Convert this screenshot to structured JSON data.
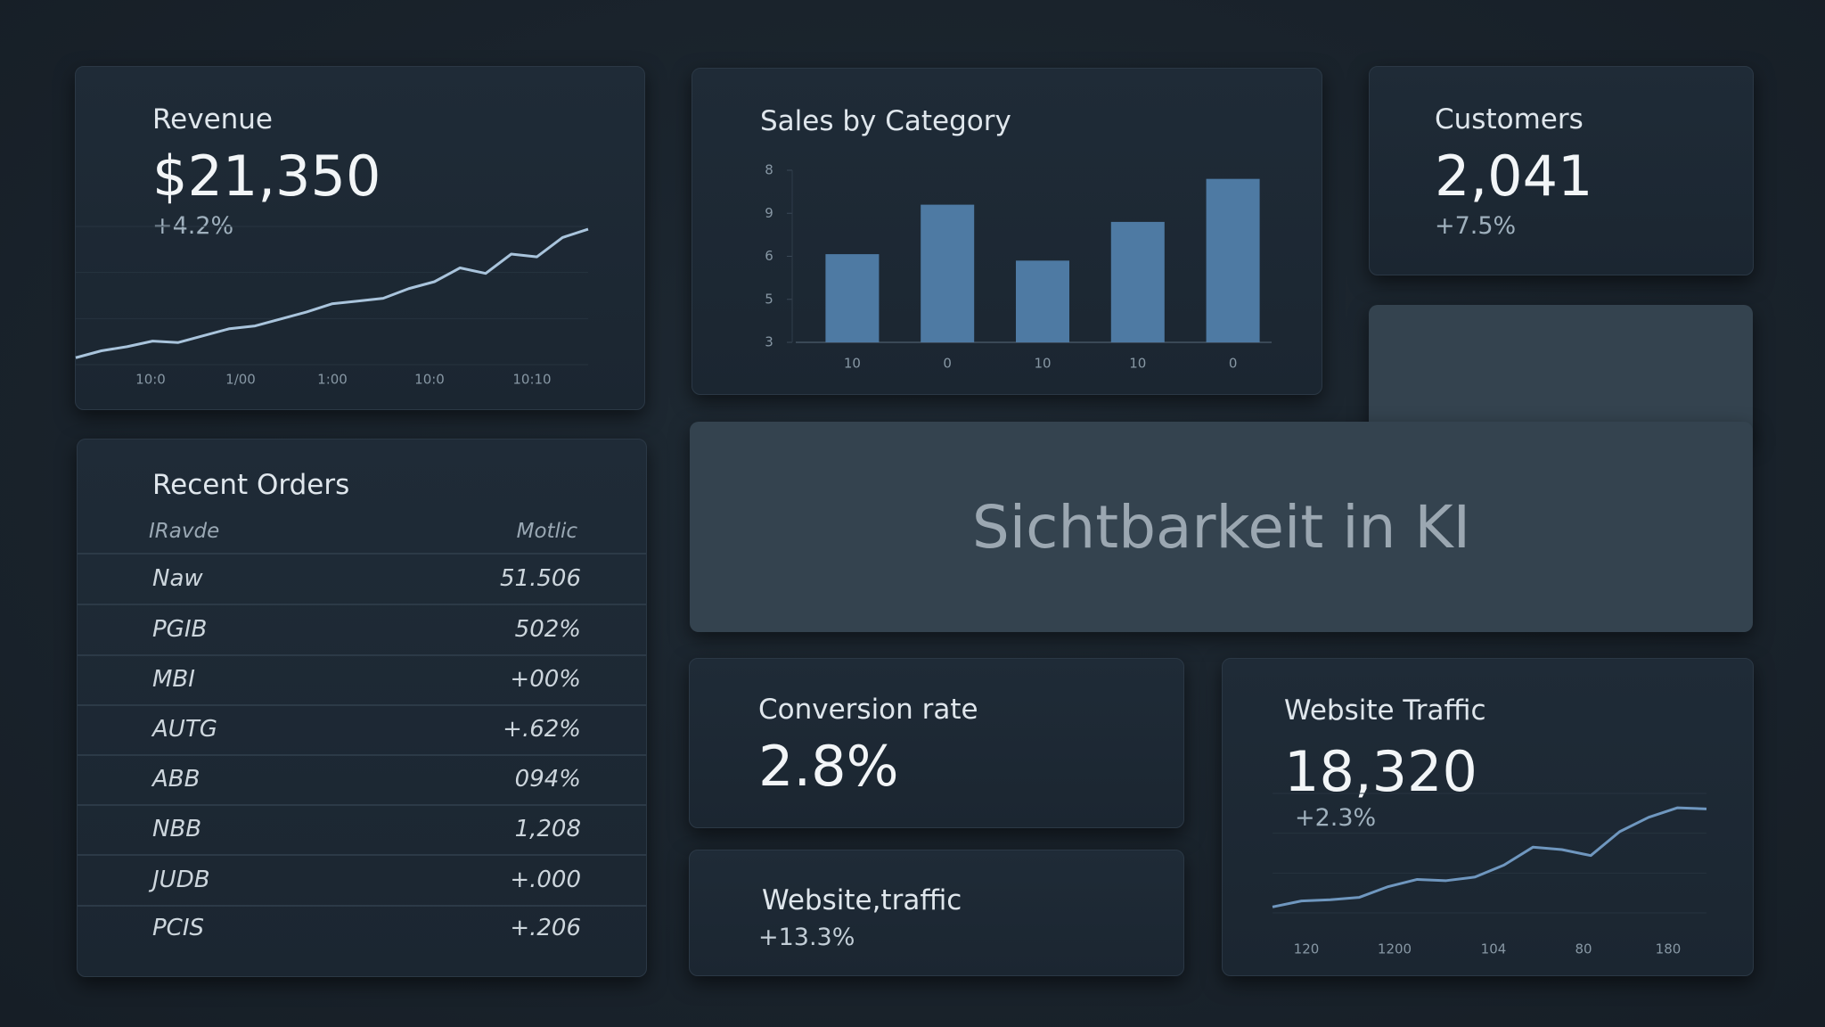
{
  "revenue": {
    "title": "Revenue",
    "value": "$21,350",
    "change": "+4.2%",
    "chart": {
      "type": "line",
      "color": "#a9c4dc",
      "categories": [
        "10:0",
        "1/00",
        "1:00",
        "10:0",
        "10:10"
      ],
      "values": [
        5,
        10,
        13,
        17,
        16,
        21,
        26,
        28,
        33,
        38,
        44,
        46,
        48,
        55,
        60,
        70,
        66,
        80,
        78,
        92,
        98
      ],
      "ylim": [
        0,
        100
      ]
    }
  },
  "sales": {
    "title": "Sales by Category",
    "chart": {
      "type": "bar",
      "color": "#4e7aa3",
      "categories": [
        "10",
        "0",
        "10",
        "10",
        "0"
      ],
      "values": [
        2.05,
        3.2,
        1.9,
        2.8,
        3.8
      ],
      "ylim": [
        0,
        4
      ],
      "yticks": [
        {
          "value": 4,
          "label": "8"
        },
        {
          "value": 3,
          "label": "9"
        },
        {
          "value": 2,
          "label": "6"
        },
        {
          "value": 1,
          "label": "5"
        },
        {
          "value": 0,
          "label": "3"
        }
      ]
    }
  },
  "customers": {
    "title": "Customers",
    "value": "2,041",
    "change": "+7.5%"
  },
  "banner": {
    "title": "Sichtbarkeit in KI"
  },
  "orders": {
    "title": "Recent Orders",
    "header": [
      "IRavde",
      "Motlic"
    ],
    "rows": [
      [
        "Naw",
        "51.506"
      ],
      [
        "PGIB",
        "502%"
      ],
      [
        "MBI",
        "+00%"
      ],
      [
        "AUTG",
        "+.62%"
      ],
      [
        "ABB",
        "094%"
      ],
      [
        "NBB",
        "1,208"
      ],
      [
        "JUDB",
        "+.000"
      ],
      [
        "PCIS",
        "+.206"
      ]
    ]
  },
  "conversion": {
    "title": "Conversion rate",
    "value": "2.8%"
  },
  "traffic_small": {
    "title": "Website,traffic",
    "change": "+13.3%"
  },
  "traffic": {
    "title": "Website Traffic",
    "value": "18,320",
    "change": "+2.3%",
    "chart": {
      "type": "line",
      "color": "#6f97bf",
      "categories": [
        "120",
        "1200",
        "104",
        "80",
        "180"
      ],
      "values": [
        5,
        10,
        11,
        13,
        22,
        28,
        27,
        30,
        40,
        55,
        53,
        48,
        68,
        80,
        88,
        87
      ],
      "ylim": [
        0,
        100
      ]
    }
  }
}
